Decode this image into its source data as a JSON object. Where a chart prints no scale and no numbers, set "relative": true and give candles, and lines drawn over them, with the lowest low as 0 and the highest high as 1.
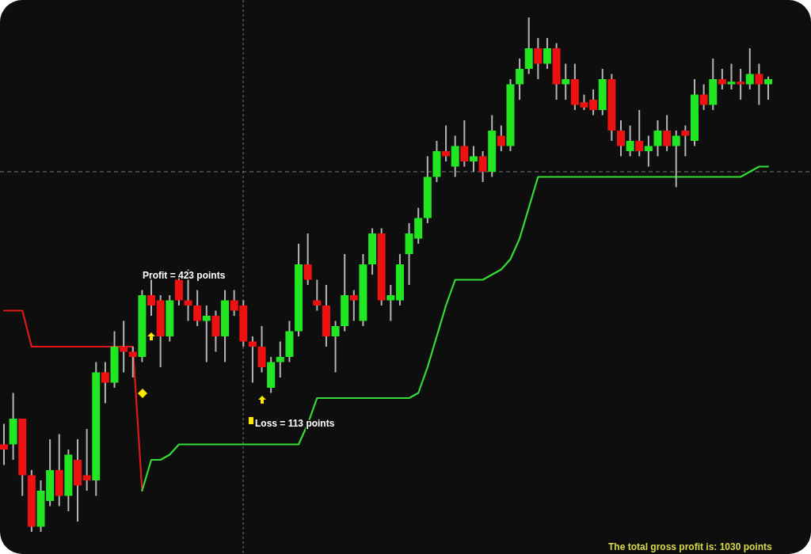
{
  "chart_data": {
    "type": "candlestick",
    "relative": true,
    "grid": false,
    "categories": [
      null,
      null,
      null,
      null,
      null,
      null,
      null,
      null,
      null,
      null,
      null,
      null,
      null,
      null,
      null,
      null,
      null,
      null,
      null,
      null,
      null,
      null,
      null,
      null,
      null,
      null,
      null,
      null,
      null,
      null,
      null,
      null,
      null,
      null,
      null,
      null,
      null,
      null,
      null,
      null,
      null,
      null,
      null,
      null,
      null,
      null,
      null,
      null,
      null,
      null,
      null,
      null,
      null,
      null,
      null,
      null,
      null,
      null,
      null,
      null,
      null,
      null,
      null,
      null,
      null,
      null,
      null,
      null,
      null,
      null,
      null,
      null,
      null,
      null,
      null,
      null,
      null,
      null,
      null,
      null,
      null,
      null,
      null,
      null
    ],
    "colors": [
      "#ee1111",
      "#22e622",
      "#ee1111",
      "#ee1111",
      "#22e622",
      "#22e622",
      "#ee1111",
      "#22e622",
      "#ee1111",
      "#ee1111",
      "#22e622",
      "#ee1111",
      "#22e622",
      "#ee1111",
      "#ee1111",
      "#22e622",
      "#ee1111",
      "#ee1111",
      "#22e622",
      "#ee1111",
      "#ee1111",
      "#ee1111",
      "#22e622",
      "#ee1111",
      "#22e622",
      "#ee1111",
      "#ee1111",
      "#ee1111",
      "#ee1111",
      "#22e622",
      "#22e622",
      "#22e622",
      "#22e622",
      "#ee1111",
      "#ee1111",
      "#ee1111",
      "#22e622",
      "#22e622",
      "#ee1111",
      "#22e622",
      "#22e622",
      "#ee1111",
      "#22e622",
      "#22e622",
      "#22e622",
      "#22e622",
      "#22e622",
      "#22e622",
      "#ee1111",
      "#22e622",
      "#ee1111",
      "#22e622",
      "#ee1111",
      "#22e622",
      "#ee1111",
      "#22e622",
      "#22e622",
      "#22e622",
      "#ee1111",
      "#22e622",
      "#ee1111",
      "#22e622",
      "#ee1111",
      "#ee1111",
      "#ee1111",
      "#22e622",
      "#ee1111",
      "#ee1111",
      "#22e622",
      "#ee1111",
      "#22e622",
      "#22e622",
      "#ee1111",
      "#22e622",
      "#ee1111",
      "#22e622",
      "#ee1111",
      "#22e622",
      "#ee1111",
      "#22e622",
      "#ee1111",
      "#22e622",
      "#ee1111",
      "#22e622"
    ],
    "ohlc": [
      [
        0.17,
        0.21,
        0.13,
        0.16
      ],
      [
        0.17,
        0.27,
        0.14,
        0.22
      ],
      [
        0.22,
        0.22,
        0.07,
        0.11
      ],
      [
        0.11,
        0.12,
        0,
        0.01
      ],
      [
        0.01,
        0.1,
        0,
        0.08
      ],
      [
        0.06,
        0.18,
        0.05,
        0.12
      ],
      [
        0.12,
        0.19,
        0.05,
        0.07
      ],
      [
        0.07,
        0.16,
        0.04,
        0.15
      ],
      [
        0.14,
        0.18,
        0.02,
        0.09
      ],
      [
        0.11,
        0.2,
        0.08,
        0.1
      ],
      [
        0.1,
        0.33,
        0.07,
        0.31
      ],
      [
        0.31,
        0.33,
        0.25,
        0.29
      ],
      [
        0.29,
        0.39,
        0.28,
        0.36
      ],
      [
        0.36,
        0.41,
        0.31,
        0.35
      ],
      [
        0.35,
        0.36,
        0.3,
        0.34
      ],
      [
        0.34,
        0.47,
        0.33,
        0.46
      ],
      [
        0.46,
        0.5,
        0.42,
        0.44
      ],
      [
        0.45,
        0.46,
        0.32,
        0.38
      ],
      [
        0.38,
        0.46,
        0.37,
        0.45
      ],
      [
        0.49,
        0.5,
        0.44,
        0.45
      ],
      [
        0.45,
        0.51,
        0.41,
        0.44
      ],
      [
        0.44,
        0.47,
        0.4,
        0.41
      ],
      [
        0.41,
        0.44,
        0.33,
        0.42
      ],
      [
        0.42,
        0.43,
        0.35,
        0.38
      ],
      [
        0.38,
        0.47,
        0.33,
        0.45
      ],
      [
        0.45,
        0.47,
        0.42,
        0.43
      ],
      [
        0.44,
        0.45,
        0.36,
        0.37
      ],
      [
        0.37,
        0.38,
        0.29,
        0.36
      ],
      [
        0.36,
        0.4,
        0.31,
        0.32
      ],
      [
        0.28,
        0.34,
        0.27,
        0.33
      ],
      [
        0.33,
        0.37,
        0.3,
        0.34
      ],
      [
        0.34,
        0.41,
        0.33,
        0.39
      ],
      [
        0.39,
        0.56,
        0.38,
        0.52
      ],
      [
        0.52,
        0.58,
        0.48,
        0.49
      ],
      [
        0.45,
        0.49,
        0.43,
        0.44
      ],
      [
        0.44,
        0.48,
        0.36,
        0.38
      ],
      [
        0.38,
        0.41,
        0.31,
        0.4
      ],
      [
        0.4,
        0.54,
        0.39,
        0.46
      ],
      [
        0.46,
        0.47,
        0.41,
        0.45
      ],
      [
        0.41,
        0.54,
        0.4,
        0.52
      ],
      [
        0.52,
        0.59,
        0.5,
        0.58
      ],
      [
        0.58,
        0.59,
        0.44,
        0.45
      ],
      [
        0.45,
        0.48,
        0.41,
        0.46
      ],
      [
        0.45,
        0.54,
        0.44,
        0.52
      ],
      [
        0.54,
        0.6,
        0.48,
        0.58
      ],
      [
        0.57,
        0.63,
        0.56,
        0.61
      ],
      [
        0.61,
        0.73,
        0.6,
        0.69
      ],
      [
        0.69,
        0.76,
        0.68,
        0.74
      ],
      [
        0.74,
        0.79,
        0.72,
        0.73
      ],
      [
        0.71,
        0.77,
        0.69,
        0.75
      ],
      [
        0.75,
        0.8,
        0.71,
        0.72
      ],
      [
        0.72,
        0.75,
        0.7,
        0.73
      ],
      [
        0.73,
        0.74,
        0.68,
        0.7
      ],
      [
        0.7,
        0.81,
        0.69,
        0.78
      ],
      [
        0.77,
        0.79,
        0.74,
        0.75
      ],
      [
        0.75,
        0.88,
        0.74,
        0.87
      ],
      [
        0.87,
        0.92,
        0.84,
        0.9
      ],
      [
        0.9,
        1,
        0.89,
        0.94
      ],
      [
        0.94,
        0.96,
        0.88,
        0.91
      ],
      [
        0.91,
        0.96,
        0.9,
        0.94
      ],
      [
        0.94,
        0.95,
        0.84,
        0.87
      ],
      [
        0.87,
        0.91,
        0.84,
        0.88
      ],
      [
        0.88,
        0.91,
        0.82,
        0.83
      ],
      [
        0.835,
        0.85,
        0.82,
        0.825
      ],
      [
        0.84,
        0.86,
        0.81,
        0.82
      ],
      [
        0.82,
        0.9,
        0.81,
        0.88
      ],
      [
        0.88,
        0.89,
        0.76,
        0.78
      ],
      [
        0.78,
        0.8,
        0.73,
        0.75
      ],
      [
        0.74,
        0.79,
        0.73,
        0.76
      ],
      [
        0.76,
        0.82,
        0.73,
        0.74
      ],
      [
        0.74,
        0.77,
        0.71,
        0.75
      ],
      [
        0.75,
        0.8,
        0.73,
        0.78
      ],
      [
        0.78,
        0.81,
        0.74,
        0.75
      ],
      [
        0.75,
        0.78,
        0.67,
        0.77
      ],
      [
        0.78,
        0.79,
        0.73,
        0.77
      ],
      [
        0.76,
        0.88,
        0.75,
        0.85
      ],
      [
        0.85,
        0.87,
        0.82,
        0.83
      ],
      [
        0.83,
        0.92,
        0.82,
        0.88
      ],
      [
        0.88,
        0.9,
        0.86,
        0.87
      ],
      [
        0.87,
        0.91,
        0.86,
        0.875
      ],
      [
        0.875,
        0.9,
        0.84,
        0.87
      ],
      [
        0.87,
        0.94,
        0.86,
        0.89
      ],
      [
        0.89,
        0.91,
        0.83,
        0.87
      ],
      [
        0.87,
        0.885,
        0.84,
        0.88
      ]
    ],
    "series": [
      {
        "type": "line",
        "color": "#e01818",
        "values": [
          0.43,
          0.43,
          0.43,
          0.36,
          0.36,
          0.36,
          0.36,
          0.36,
          0.36,
          0.36,
          0.36,
          0.36,
          0.36,
          0.36,
          0.36,
          0.08,
          null,
          null,
          null,
          null,
          null,
          null,
          null,
          null,
          null,
          null,
          null,
          null,
          null,
          null,
          null,
          null,
          null,
          null,
          null,
          null,
          null,
          null,
          null,
          null,
          null,
          null,
          null,
          null,
          null,
          null,
          null,
          null,
          null,
          null,
          null,
          null,
          null,
          null,
          null,
          null,
          null,
          null,
          null,
          null,
          null,
          null,
          null,
          null,
          null,
          null,
          null,
          null,
          null,
          null,
          null,
          null,
          null,
          null,
          null,
          null,
          null,
          null,
          null,
          null,
          null,
          null,
          null,
          null
        ]
      },
      {
        "type": "line",
        "color": "#33dd33",
        "values": [
          null,
          null,
          null,
          null,
          null,
          null,
          null,
          null,
          null,
          null,
          null,
          null,
          null,
          null,
          null,
          0.08,
          0.14,
          0.14,
          0.15,
          0.17,
          0.17,
          0.17,
          0.17,
          0.17,
          0.17,
          0.17,
          0.17,
          0.17,
          0.17,
          0.17,
          0.17,
          0.17,
          0.17,
          0.21,
          0.26,
          0.26,
          0.26,
          0.26,
          0.26,
          0.26,
          0.26,
          0.26,
          0.26,
          0.26,
          0.26,
          0.27,
          0.32,
          0.38,
          0.44,
          0.49,
          0.49,
          0.49,
          0.49,
          0.5,
          0.51,
          0.53,
          0.57,
          0.63,
          0.69,
          0.69,
          0.69,
          0.69,
          0.69,
          0.69,
          0.69,
          0.69,
          0.69,
          0.69,
          0.69,
          0.69,
          0.69,
          0.69,
          0.69,
          0.69,
          0.69,
          0.69,
          0.69,
          0.69,
          0.69,
          0.69,
          0.69,
          0.7,
          0.71,
          0.71
        ]
      }
    ],
    "line_style": "solid",
    "marker": "none",
    "ref_lines": [
      {
        "axis": "y",
        "value": 0.7,
        "color": "#777777",
        "line_style": "dashed"
      }
    ],
    "annotations": [
      "Profit = 423 points",
      "Loss = 113 points",
      "The total gross profit is: 1030 points"
    ]
  }
}
